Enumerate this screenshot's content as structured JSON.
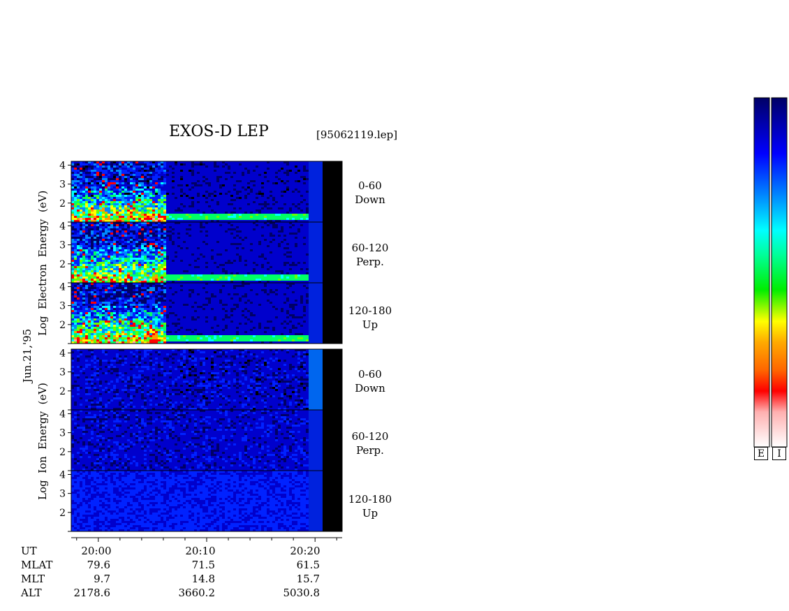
{
  "title": "EXOS-D LEP",
  "file_label": "[95062119.lep]",
  "date_label": "Jun.21,'95",
  "electron_ylabel": [
    "Log",
    "Electron",
    "Energy",
    "(eV)"
  ],
  "ion_ylabel": [
    "Log",
    "Ion",
    "Energy",
    "(eV)"
  ],
  "panel_labels": [
    {
      "range": "0-60",
      "dir": "Down"
    },
    {
      "range": "60-120",
      "dir": "Perp."
    },
    {
      "range": "120-180",
      "dir": "Up"
    },
    {
      "range": "0-60",
      "dir": "Down"
    },
    {
      "range": "60-120",
      "dir": "Perp."
    },
    {
      "range": "120-180",
      "dir": "Up"
    }
  ],
  "scale_labels": {
    "electron": "E",
    "ion": "I"
  },
  "footer": {
    "row_labels": [
      "UT",
      "MLAT",
      "MLT",
      "ALT"
    ],
    "columns": [
      {
        "UT": "20:00",
        "MLAT": "79.6",
        "MLT": "9.7",
        "ALT": "2178.6"
      },
      {
        "UT": "20:10",
        "MLAT": "71.5",
        "MLT": "14.8",
        "ALT": "3660.2"
      },
      {
        "UT": "20:20",
        "MLAT": "61.5",
        "MLT": "15.7",
        "ALT": "5030.8"
      }
    ]
  },
  "chart_data": {
    "type": "heatmap",
    "title": "EXOS-D LEP",
    "x_axis": {
      "label": "UT",
      "ticks": [
        "20:00",
        "20:10",
        "20:20"
      ],
      "range_min": [
        -2.5,
        22.5
      ]
    },
    "y_axis": {
      "label": "Log Energy (eV)",
      "ticks": [
        1,
        2,
        3,
        4
      ],
      "range": [
        1,
        4.2
      ]
    },
    "colorscale": [
      "#ffffff",
      "#ffb0b0",
      "#ff0000",
      "#ff8800",
      "#ffff00",
      "#00ff00",
      "#00ffff",
      "#0088ff",
      "#0000ff",
      "#000066"
    ],
    "panels": [
      {
        "species": "Electron",
        "pitch": "0-60",
        "dir": "Down"
      },
      {
        "species": "Electron",
        "pitch": "60-120",
        "dir": "Perp."
      },
      {
        "species": "Electron",
        "pitch": "120-180",
        "dir": "Up"
      },
      {
        "species": "Ion",
        "pitch": "0-60",
        "dir": "Down"
      },
      {
        "species": "Ion",
        "pitch": "60-120",
        "dir": "Perp."
      },
      {
        "species": "Ion",
        "pitch": "120-180",
        "dir": "Up"
      }
    ]
  }
}
